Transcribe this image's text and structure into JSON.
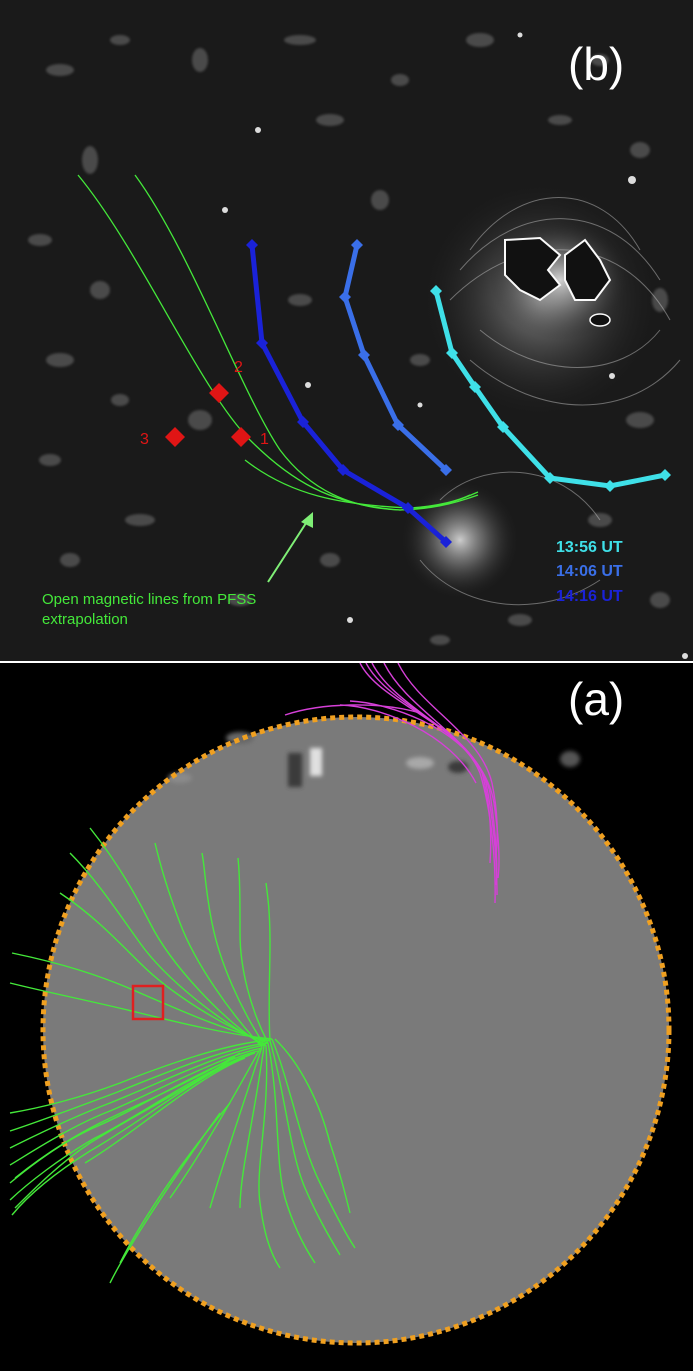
{
  "panel_b": {
    "label": "(b)",
    "marker_labels": [
      "1",
      "2",
      "3"
    ],
    "annotation": {
      "line1": "Open magnetic lines from PFSS",
      "line2": "extrapolation"
    },
    "times": [
      {
        "label": "13:56 UT",
        "color": "#3fe0e8"
      },
      {
        "label": "14:06 UT",
        "color": "#3a6fe8"
      },
      {
        "label": "14:16 UT",
        "color": "#1a22d8"
      }
    ]
  },
  "panel_a": {
    "label": "(a)"
  },
  "colors": {
    "open_field_lines": "#44e83a",
    "closed_field_lines": "#d640d8",
    "limb_outline": "#f0a020",
    "region_box": "#e02020",
    "markers": "#e01515",
    "disk": "#7a7a7a"
  },
  "icons": [
    "diamond-marker",
    "arrow"
  ]
}
